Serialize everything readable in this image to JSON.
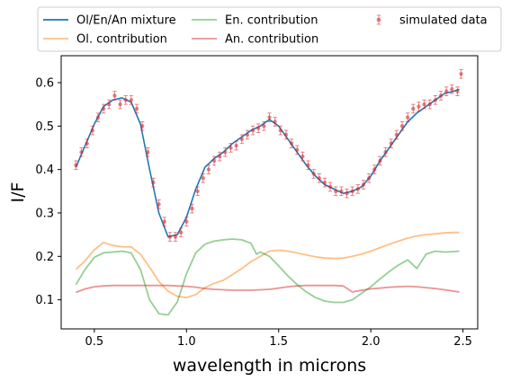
{
  "chart_data": {
    "type": "line",
    "title": "",
    "xlabel": "wavelength in microns",
    "ylabel": "I/F",
    "xlim": [
      0.32,
      2.58
    ],
    "ylim": [
      0.033,
      0.662
    ],
    "xticks": [
      0.5,
      1.0,
      1.5,
      2.0,
      2.5
    ],
    "yticks": [
      0.1,
      0.2,
      0.3,
      0.4,
      0.5,
      0.6
    ],
    "grid": false,
    "legend_position": "top, above plot, 3 columns",
    "series": [
      {
        "name": "Ol/En/An mixture",
        "kind": "line",
        "color": "#1f77b4",
        "x": [
          0.4,
          0.45,
          0.5,
          0.55,
          0.6,
          0.65,
          0.7,
          0.75,
          0.8,
          0.85,
          0.9,
          0.95,
          1.0,
          1.05,
          1.1,
          1.15,
          1.2,
          1.25,
          1.3,
          1.35,
          1.4,
          1.45,
          1.5,
          1.55,
          1.6,
          1.65,
          1.7,
          1.75,
          1.8,
          1.85,
          1.9,
          1.95,
          2.0,
          2.05,
          2.1,
          2.15,
          2.2,
          2.25,
          2.3,
          2.35,
          2.4,
          2.45,
          2.48
        ],
        "y": [
          0.405,
          0.455,
          0.505,
          0.545,
          0.56,
          0.565,
          0.555,
          0.505,
          0.4,
          0.3,
          0.245,
          0.25,
          0.29,
          0.355,
          0.405,
          0.425,
          0.44,
          0.46,
          0.475,
          0.49,
          0.5,
          0.515,
          0.5,
          0.47,
          0.44,
          0.41,
          0.385,
          0.365,
          0.355,
          0.345,
          0.35,
          0.36,
          0.385,
          0.42,
          0.45,
          0.48,
          0.51,
          0.53,
          0.545,
          0.56,
          0.575,
          0.58,
          0.585
        ]
      },
      {
        "name": "Ol. contribution",
        "kind": "line",
        "color": "#ff7f0e",
        "x": [
          0.4,
          0.45,
          0.5,
          0.55,
          0.6,
          0.65,
          0.7,
          0.75,
          0.8,
          0.85,
          0.9,
          0.95,
          1.0,
          1.05,
          1.1,
          1.15,
          1.2,
          1.25,
          1.3,
          1.35,
          1.4,
          1.45,
          1.5,
          1.55,
          1.6,
          1.65,
          1.7,
          1.75,
          1.8,
          1.85,
          1.9,
          1.95,
          2.0,
          2.05,
          2.1,
          2.15,
          2.2,
          2.25,
          2.3,
          2.35,
          2.4,
          2.45,
          2.48
        ],
        "y": [
          0.17,
          0.19,
          0.215,
          0.232,
          0.225,
          0.222,
          0.222,
          0.205,
          0.175,
          0.142,
          0.12,
          0.108,
          0.105,
          0.112,
          0.128,
          0.138,
          0.145,
          0.158,
          0.172,
          0.188,
          0.2,
          0.212,
          0.214,
          0.212,
          0.208,
          0.203,
          0.199,
          0.196,
          0.195,
          0.196,
          0.2,
          0.205,
          0.212,
          0.22,
          0.228,
          0.235,
          0.242,
          0.247,
          0.25,
          0.252,
          0.254,
          0.255,
          0.255
        ]
      },
      {
        "name": "En. contribution",
        "kind": "line",
        "color": "#2ca02c",
        "x": [
          0.4,
          0.45,
          0.5,
          0.55,
          0.6,
          0.65,
          0.7,
          0.75,
          0.8,
          0.85,
          0.9,
          0.95,
          1.0,
          1.05,
          1.1,
          1.15,
          1.2,
          1.25,
          1.3,
          1.35,
          1.38,
          1.4,
          1.45,
          1.5,
          1.55,
          1.6,
          1.65,
          1.7,
          1.75,
          1.8,
          1.85,
          1.9,
          1.95,
          2.0,
          2.05,
          2.1,
          2.15,
          2.2,
          2.25,
          2.3,
          2.35,
          2.4,
          2.45,
          2.48
        ],
        "y": [
          0.135,
          0.17,
          0.198,
          0.208,
          0.21,
          0.212,
          0.208,
          0.17,
          0.1,
          0.068,
          0.065,
          0.095,
          0.16,
          0.208,
          0.228,
          0.235,
          0.238,
          0.24,
          0.238,
          0.23,
          0.205,
          0.21,
          0.2,
          0.178,
          0.155,
          0.135,
          0.118,
          0.105,
          0.097,
          0.094,
          0.094,
          0.1,
          0.115,
          0.13,
          0.148,
          0.165,
          0.18,
          0.192,
          0.172,
          0.205,
          0.212,
          0.21,
          0.211,
          0.212
        ]
      },
      {
        "name": "An. contribution",
        "kind": "line",
        "color": "#d62728",
        "x": [
          0.4,
          0.45,
          0.5,
          0.55,
          0.6,
          0.65,
          0.7,
          0.75,
          0.8,
          0.85,
          0.9,
          0.95,
          1.0,
          1.05,
          1.1,
          1.15,
          1.2,
          1.25,
          1.3,
          1.35,
          1.4,
          1.45,
          1.5,
          1.55,
          1.6,
          1.65,
          1.7,
          1.75,
          1.8,
          1.85,
          1.9,
          1.95,
          2.0,
          2.05,
          2.1,
          2.15,
          2.2,
          2.25,
          2.3,
          2.35,
          2.4,
          2.45,
          2.48
        ],
        "y": [
          0.117,
          0.125,
          0.13,
          0.132,
          0.133,
          0.133,
          0.133,
          0.133,
          0.133,
          0.133,
          0.133,
          0.132,
          0.131,
          0.129,
          0.126,
          0.124,
          0.123,
          0.122,
          0.122,
          0.122,
          0.123,
          0.124,
          0.127,
          0.13,
          0.132,
          0.133,
          0.133,
          0.133,
          0.133,
          0.132,
          0.118,
          0.122,
          0.125,
          0.127,
          0.129,
          0.13,
          0.131,
          0.13,
          0.128,
          0.126,
          0.123,
          0.12,
          0.118
        ]
      },
      {
        "name": "simulated data",
        "kind": "errorbar",
        "color": "#d62728",
        "marker": "circle",
        "yerr": 0.01,
        "x": [
          0.4,
          0.43,
          0.46,
          0.49,
          0.52,
          0.55,
          0.58,
          0.61,
          0.64,
          0.67,
          0.7,
          0.73,
          0.76,
          0.79,
          0.82,
          0.85,
          0.88,
          0.91,
          0.94,
          0.97,
          1.0,
          1.03,
          1.06,
          1.09,
          1.12,
          1.15,
          1.18,
          1.21,
          1.24,
          1.27,
          1.3,
          1.33,
          1.36,
          1.39,
          1.42,
          1.45,
          1.48,
          1.51,
          1.54,
          1.57,
          1.6,
          1.63,
          1.66,
          1.69,
          1.72,
          1.75,
          1.78,
          1.81,
          1.84,
          1.87,
          1.9,
          1.93,
          1.96,
          1.99,
          2.02,
          2.05,
          2.08,
          2.11,
          2.14,
          2.17,
          2.2,
          2.23,
          2.26,
          2.29,
          2.32,
          2.35,
          2.38,
          2.41,
          2.44,
          2.47,
          2.49
        ],
        "y": [
          0.41,
          0.44,
          0.46,
          0.49,
          0.52,
          0.54,
          0.55,
          0.57,
          0.55,
          0.56,
          0.56,
          0.54,
          0.5,
          0.44,
          0.37,
          0.32,
          0.28,
          0.245,
          0.245,
          0.255,
          0.28,
          0.31,
          0.35,
          0.38,
          0.4,
          0.42,
          0.43,
          0.44,
          0.45,
          0.455,
          0.47,
          0.48,
          0.49,
          0.495,
          0.5,
          0.52,
          0.51,
          0.49,
          0.48,
          0.46,
          0.445,
          0.43,
          0.41,
          0.39,
          0.38,
          0.37,
          0.36,
          0.35,
          0.35,
          0.345,
          0.35,
          0.355,
          0.365,
          0.38,
          0.4,
          0.42,
          0.44,
          0.46,
          0.48,
          0.5,
          0.52,
          0.54,
          0.545,
          0.55,
          0.55,
          0.56,
          0.57,
          0.58,
          0.585,
          0.58,
          0.62
        ]
      }
    ]
  }
}
